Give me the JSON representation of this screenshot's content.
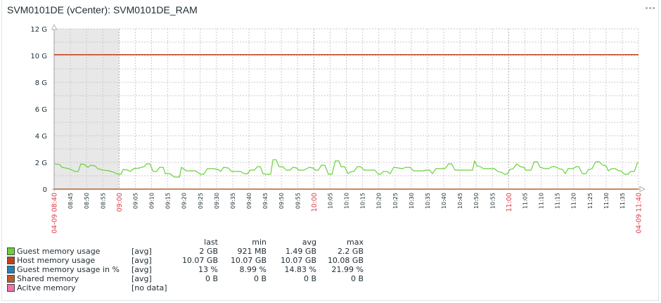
{
  "widget": {
    "title": "SVM0101DE (vCenter): SVM0101DE_RAM",
    "menu_icon": "ellipsis-icon"
  },
  "legend": {
    "columns": [
      "last",
      "min",
      "avg",
      "max"
    ],
    "items": [
      {
        "name": "Guest memory usage",
        "func": "[avg]",
        "color": "#6ad13c",
        "last": "2 GB",
        "min": "921 MB",
        "avg": "1.49 GB",
        "max": "2.2 GB"
      },
      {
        "name": "Host memory usage",
        "func": "[avg]",
        "color": "#c4401d",
        "last": "10.07 GB",
        "min": "10.07 GB",
        "avg": "10.07 GB",
        "max": "10.08 GB"
      },
      {
        "name": "Guest memory usage in %",
        "func": "[avg]",
        "color": "#2b7fb0",
        "last": "13 %",
        "min": "8.99 %",
        "avg": "14.83 %",
        "max": "21.99 %"
      },
      {
        "name": "Shared memory",
        "func": "[avg]",
        "color": "#b5602a",
        "last": "0 B",
        "min": "0 B",
        "avg": "0 B",
        "max": "0 B"
      },
      {
        "name": "Acitve memory",
        "func": "[no data]",
        "color": "#f070a8",
        "last": "",
        "min": "",
        "avg": "",
        "max": ""
      }
    ]
  },
  "chart_data": {
    "type": "line",
    "title": "SVM0101DE (vCenter): SVM0101DE_RAM",
    "xlabel": "",
    "ylabel": "",
    "ylim": [
      0,
      12
    ],
    "y_ticks": [
      "0",
      "2 G",
      "4 G",
      "6 G",
      "8 G",
      "10 G",
      "12 G"
    ],
    "y_tick_values": [
      0,
      2,
      4,
      6,
      8,
      10,
      12
    ],
    "x_range_minutes": [
      0,
      180
    ],
    "x_start_label": "04-09 08:40",
    "x_end_label": "04-09 11:40",
    "x_ticks": [
      {
        "m": 5,
        "label": "08:45"
      },
      {
        "m": 10,
        "label": "08:50"
      },
      {
        "m": 15,
        "label": "08:55"
      },
      {
        "m": 20,
        "label": "09:00",
        "major": true
      },
      {
        "m": 25,
        "label": "09:05"
      },
      {
        "m": 30,
        "label": "09:10"
      },
      {
        "m": 35,
        "label": "09:15"
      },
      {
        "m": 40,
        "label": "09:20"
      },
      {
        "m": 45,
        "label": "09:25"
      },
      {
        "m": 50,
        "label": "09:30"
      },
      {
        "m": 55,
        "label": "09:35"
      },
      {
        "m": 60,
        "label": "09:40"
      },
      {
        "m": 65,
        "label": "09:45"
      },
      {
        "m": 70,
        "label": "09:50"
      },
      {
        "m": 75,
        "label": "09:55"
      },
      {
        "m": 80,
        "label": "10:00",
        "major": true
      },
      {
        "m": 85,
        "label": "10:05"
      },
      {
        "m": 90,
        "label": "10:10"
      },
      {
        "m": 95,
        "label": "10:15"
      },
      {
        "m": 100,
        "label": "10:20"
      },
      {
        "m": 105,
        "label": "10:25"
      },
      {
        "m": 110,
        "label": "10:30"
      },
      {
        "m": 115,
        "label": "10:35"
      },
      {
        "m": 120,
        "label": "10:40"
      },
      {
        "m": 125,
        "label": "10:45"
      },
      {
        "m": 130,
        "label": "10:50"
      },
      {
        "m": 135,
        "label": "10:55"
      },
      {
        "m": 140,
        "label": "11:00",
        "major": true
      },
      {
        "m": 145,
        "label": "11:05"
      },
      {
        "m": 150,
        "label": "11:10"
      },
      {
        "m": 155,
        "label": "11:15"
      },
      {
        "m": 160,
        "label": "11:20"
      },
      {
        "m": 165,
        "label": "11:25"
      },
      {
        "m": 170,
        "label": "11:30"
      },
      {
        "m": 175,
        "label": "11:35"
      }
    ],
    "shaded_region_minutes": [
      0,
      20
    ],
    "grid": true,
    "legend_position": "bottom",
    "series": [
      {
        "name": "Host memory usage",
        "color": "#c4401d",
        "x": [
          0,
          180
        ],
        "values": [
          10.07,
          10.07
        ]
      },
      {
        "name": "Shared memory",
        "color": "#b5602a",
        "x": [
          0,
          180
        ],
        "values": [
          0,
          0
        ]
      },
      {
        "name": "Guest memory usage",
        "color": "#6ad13c",
        "x": [
          0.2,
          1.7,
          2.4,
          4.5,
          6.5,
          7.4,
          8.2,
          9.3,
          10.4,
          11.3,
          12.6,
          13.4,
          15.2,
          16.9,
          18.4,
          19.7,
          20.6,
          21.2,
          22.7,
          23.4,
          24.5,
          26.2,
          27.7,
          28.4,
          29.5,
          30.5,
          31.6,
          32.5,
          33.6,
          34.2,
          35.7,
          37.0,
          38.6,
          39.2,
          40.7,
          43.5,
          45.1,
          46.1,
          47.2,
          49.0,
          50.5,
          51.3,
          52.2,
          53.7,
          54.6,
          57.4,
          58.5,
          59.6,
          60.4,
          61.7,
          62.6,
          63.5,
          64.3,
          65.2,
          66.7,
          67.4,
          68.4,
          69.3,
          70.4,
          71.5,
          72.6,
          73.6,
          74.7,
          75.4,
          76.9,
          78.6,
          79.7,
          80.6,
          81.4,
          82.3,
          83.4,
          84.5,
          85.6,
          86.6,
          87.7,
          88.4,
          89.5,
          90.5,
          91.6,
          92.3,
          93.4,
          94.4,
          95.5,
          98.8,
          99.9,
          100.5,
          101.4,
          102.5,
          103.5,
          104.6,
          106.1,
          107.2,
          108.3,
          109.6,
          110.7,
          113.7,
          114.4,
          115.7,
          116.5,
          117.6,
          120.4,
          121.5,
          122.4,
          123.5,
          128.9,
          129.5,
          130.2,
          131.3,
          132.3,
          135.6,
          136.7,
          137.8,
          138.8,
          139.5,
          140.4,
          141.4,
          142.5,
          143.6,
          144.7,
          145.3,
          146.9,
          147.9,
          148.8,
          149.7,
          151.2,
          152.3,
          153.4,
          154.4,
          155.5,
          156.6,
          157.5,
          158.3,
          159.9,
          160.7,
          161.6,
          162.7,
          163.8,
          164.6,
          165.7,
          166.8,
          167.9,
          169.0,
          170.0,
          170.7,
          171.8,
          172.9,
          173.9,
          174.6,
          175.7,
          176.7,
          177.6,
          178.7,
          179.6,
          180
        ],
        "values": [
          1.89,
          1.84,
          1.63,
          1.53,
          1.32,
          1.32,
          1.89,
          1.84,
          1.63,
          1.79,
          1.74,
          1.53,
          1.42,
          1.37,
          1.26,
          1.11,
          1.11,
          1.47,
          1.42,
          1.32,
          1.53,
          1.58,
          1.68,
          1.89,
          1.89,
          1.32,
          1.32,
          1.63,
          1.63,
          1.16,
          1.16,
          0.9,
          0.9,
          1.63,
          1.37,
          1.37,
          1.11,
          1.11,
          1.53,
          1.53,
          1.47,
          1.32,
          1.63,
          1.58,
          1.32,
          1.32,
          1.16,
          1.16,
          1.42,
          1.42,
          1.68,
          1.68,
          1.16,
          1.11,
          1.11,
          2.2,
          2.2,
          1.68,
          1.68,
          1.42,
          1.42,
          1.63,
          1.58,
          1.42,
          1.42,
          1.63,
          1.58,
          1.42,
          1.42,
          1.79,
          1.79,
          1.11,
          1.11,
          2.11,
          2.11,
          1.68,
          1.68,
          1.16,
          1.32,
          1.32,
          1.68,
          1.68,
          1.42,
          1.42,
          1.11,
          1.11,
          1.32,
          1.32,
          1.16,
          1.63,
          1.58,
          1.53,
          1.63,
          1.63,
          1.37,
          1.37,
          1.42,
          1.42,
          1.16,
          1.53,
          1.53,
          1.89,
          1.89,
          1.42,
          1.42,
          2.11,
          1.74,
          1.68,
          1.53,
          1.53,
          1.32,
          1.26,
          1.11,
          1.11,
          1.47,
          1.53,
          1.89,
          1.68,
          1.63,
          1.42,
          1.42,
          2.05,
          2.05,
          1.63,
          1.53,
          1.53,
          1.68,
          1.68,
          1.53,
          1.47,
          1.16,
          1.53,
          1.53,
          1.68,
          1.68,
          1.16,
          1.16,
          1.47,
          1.53,
          2.05,
          2.05,
          1.79,
          1.74,
          1.37,
          1.53,
          1.53,
          1.37,
          1.37,
          1.11,
          1.11,
          1.32,
          1.32,
          1.95,
          2.0
        ]
      }
    ]
  }
}
